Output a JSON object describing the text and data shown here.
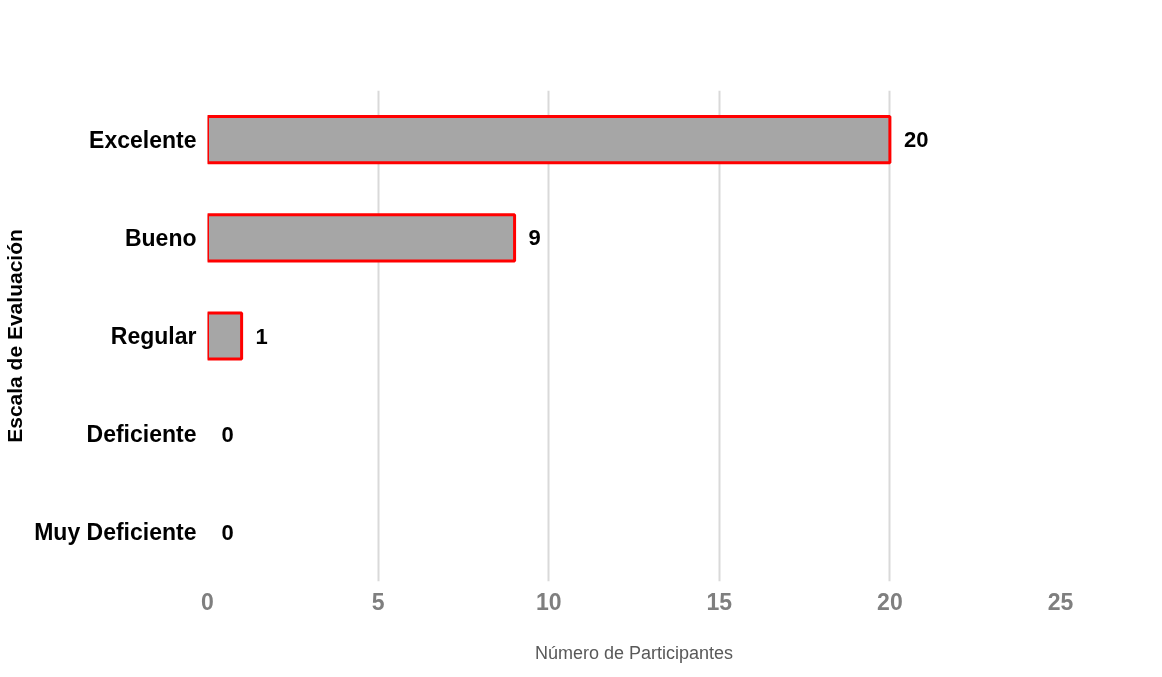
{
  "chart_data": {
    "type": "bar",
    "orientation": "horizontal",
    "categories": [
      "Excelente",
      "Bueno",
      "Regular",
      "Deficiente",
      "Muy Deficiente"
    ],
    "values": [
      20,
      9,
      1,
      0,
      0
    ],
    "color": "#a6a6a6",
    "xlabel": "Número de Participantes",
    "ylabel": "Escala de Evaluación",
    "xlim": [
      0,
      25
    ],
    "xticks": [
      0,
      5,
      10,
      15,
      20,
      25
    ],
    "grid": "x",
    "data_labels": true
  }
}
